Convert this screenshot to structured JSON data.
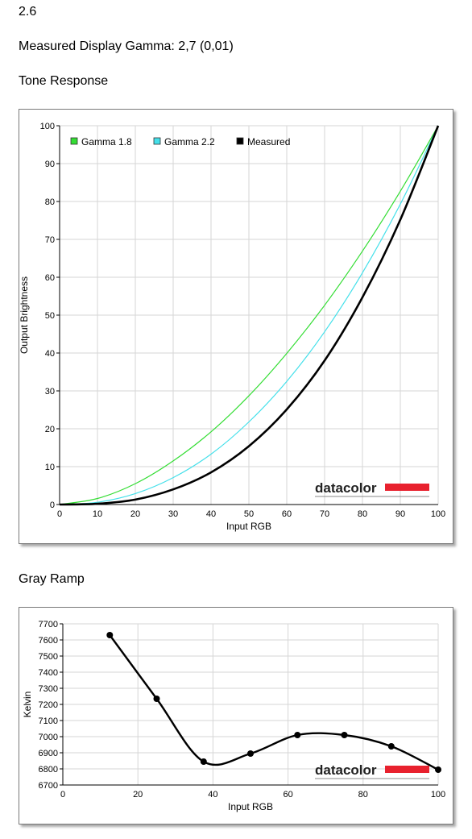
{
  "version_label": "2.6",
  "gamma_label": "Measured Display Gamma: 2,7 (0,01)",
  "brand": "datacolor",
  "colors": {
    "brand_red": "#e8212e",
    "gamma18": "#33dd33",
    "gamma22": "#44e0ea",
    "measured": "#000000",
    "grid": "#d6d6d6"
  },
  "tone_response": {
    "title": "Tone Response",
    "chart_data": {
      "type": "line",
      "xlabel": "Input RGB",
      "ylabel": "Output Brightness",
      "xlim": [
        0,
        100
      ],
      "ylim": [
        0,
        100
      ],
      "x_ticks": [
        "0",
        "10",
        "20",
        "30",
        "40",
        "50",
        "60",
        "70",
        "80",
        "90",
        "100"
      ],
      "y_ticks": [
        "0",
        "10",
        "20",
        "30",
        "40",
        "50",
        "60",
        "70",
        "80",
        "90",
        "100"
      ],
      "grid": true,
      "legend": "top-left",
      "x": [
        0,
        10,
        20,
        30,
        40,
        50,
        60,
        70,
        80,
        90,
        100
      ],
      "series": [
        {
          "name": "Gamma 1.8",
          "color": "#33dd33",
          "values": [
            0,
            1.6,
            5.5,
            11.5,
            19.2,
            28.7,
            39.9,
            52.6,
            66.9,
            82.7,
            100
          ]
        },
        {
          "name": "Gamma 2.2",
          "color": "#44e0ea",
          "values": [
            0,
            0.6,
            2.9,
            7.1,
            13.3,
            21.8,
            32.5,
            45.6,
            61.2,
            79.3,
            100
          ]
        },
        {
          "name": "Measured",
          "color": "#000000",
          "values": [
            0,
            0.2,
            1.3,
            4.0,
            8.5,
            15.4,
            25.1,
            38.0,
            54.7,
            75.2,
            100
          ]
        }
      ]
    }
  },
  "gray_ramp": {
    "title": "Gray Ramp",
    "chart_data": {
      "type": "line",
      "xlabel": "Input RGB",
      "ylabel": "Kelvin",
      "xlim": [
        0,
        100
      ],
      "ylim": [
        6700,
        7700
      ],
      "x_ticks": [
        "0",
        "20",
        "40",
        "60",
        "80",
        "100"
      ],
      "y_ticks": [
        "6700",
        "6800",
        "6900",
        "7000",
        "7100",
        "7200",
        "7300",
        "7400",
        "7500",
        "7600",
        "7700"
      ],
      "grid": true,
      "x": [
        12.5,
        25,
        37.5,
        50,
        62.5,
        75,
        87.5,
        100
      ],
      "series": [
        {
          "name": "",
          "color": "#000000",
          "values": [
            7630,
            7235,
            6845,
            6895,
            7010,
            7010,
            6940,
            6795
          ]
        }
      ]
    }
  }
}
